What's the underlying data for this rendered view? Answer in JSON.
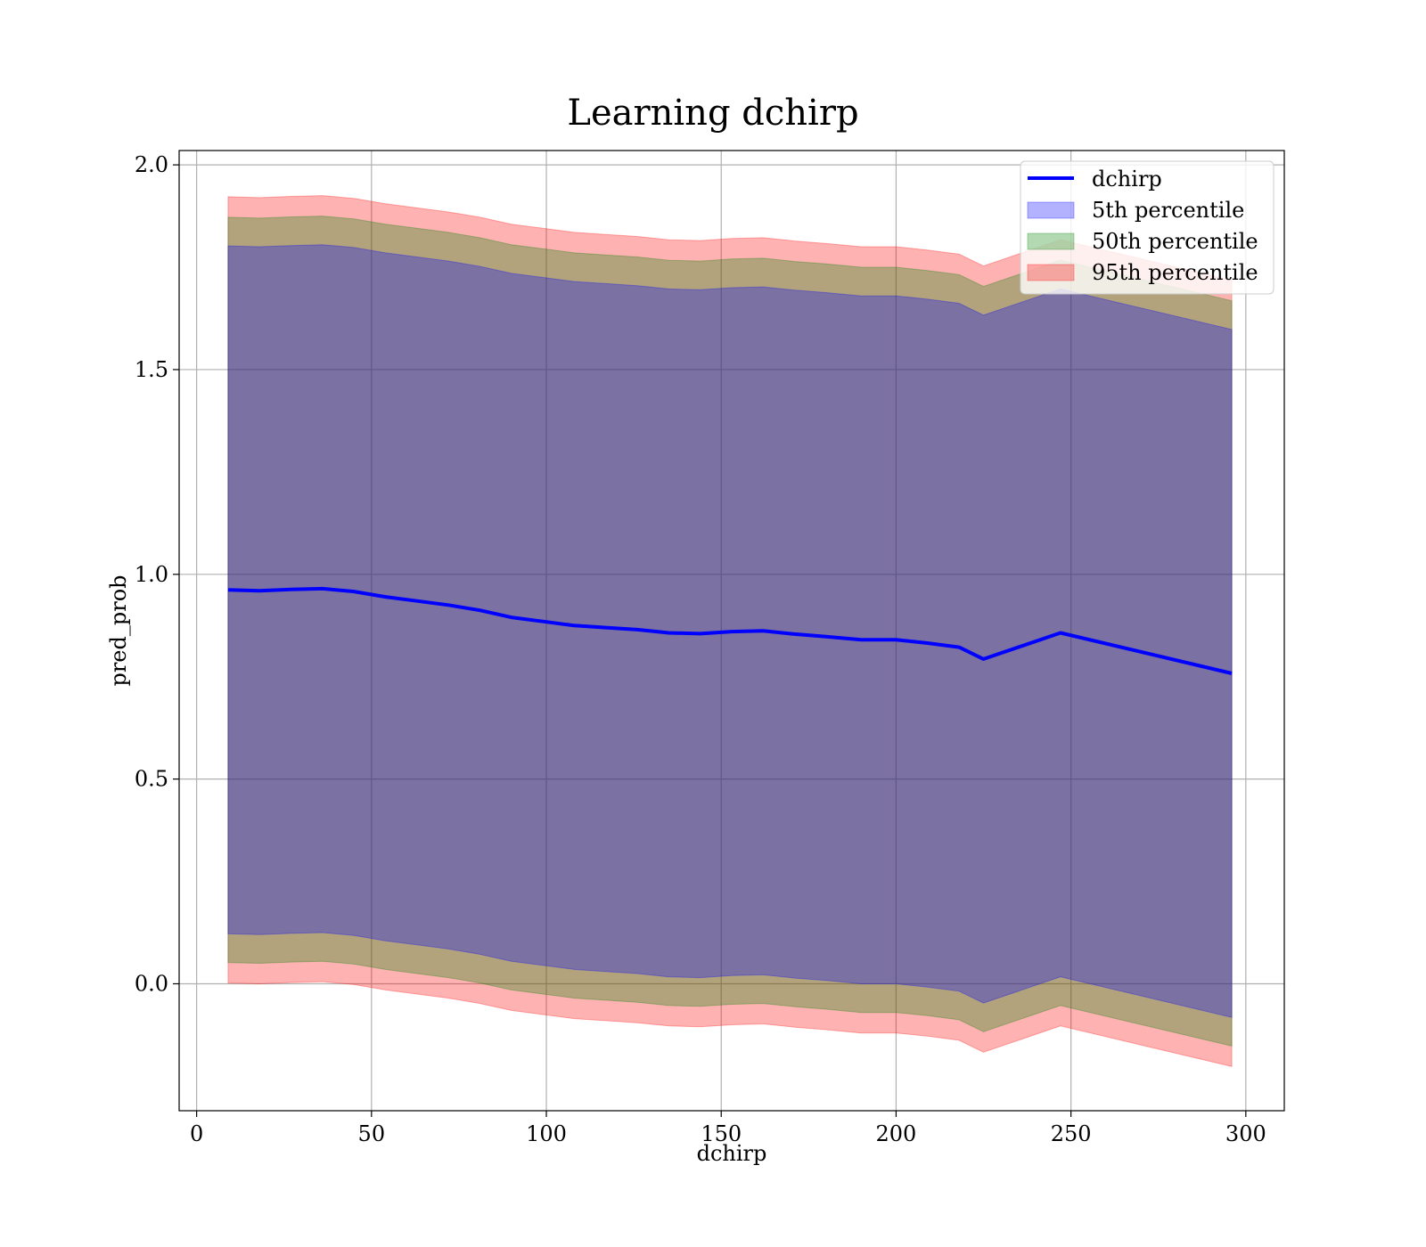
{
  "chart_data": {
    "type": "line",
    "title": "Learning dchirp",
    "xlabel": "dchirp",
    "ylabel": "pred_prob",
    "xlim": [
      -5,
      311
    ],
    "ylim": [
      -0.31,
      2.035
    ],
    "xticks": [
      0,
      50,
      100,
      150,
      200,
      250,
      300
    ],
    "yticks": [
      0.0,
      0.5,
      1.0,
      1.5,
      2.0
    ],
    "xtick_labels": [
      "0",
      "50",
      "100",
      "150",
      "200",
      "250",
      "300"
    ],
    "ytick_labels": [
      "0.0",
      "0.5",
      "1.0",
      "1.5",
      "2.0"
    ],
    "grid": true,
    "legend_position": "top-right",
    "legend": {
      "line_label": "dchirp",
      "band_labels": [
        "5th percentile",
        "50th percentile",
        "95th percentile"
      ]
    },
    "colors": {
      "line": "#0000ff",
      "p5": "#0000ff",
      "p50": "#008000",
      "p95": "#ff0000"
    },
    "x": [
      9,
      18,
      27,
      36,
      45,
      54,
      63,
      72,
      81,
      90,
      99,
      108,
      117,
      126,
      135,
      144,
      153,
      162,
      171,
      180,
      190,
      200,
      209,
      218,
      225,
      247,
      296
    ],
    "series": [
      {
        "name": "dchirp",
        "kind": "line",
        "values": [
          0.962,
          0.96,
          0.963,
          0.965,
          0.958,
          0.945,
          0.935,
          0.925,
          0.912,
          0.895,
          0.885,
          0.875,
          0.87,
          0.865,
          0.857,
          0.855,
          0.86,
          0.862,
          0.854,
          0.848,
          0.84,
          0.84,
          0.832,
          0.822,
          0.793,
          0.857,
          0.758
        ]
      },
      {
        "name": "5th percentile",
        "kind": "band",
        "lower": [
          0.122,
          0.12,
          0.123,
          0.125,
          0.118,
          0.105,
          0.095,
          0.085,
          0.072,
          0.055,
          0.045,
          0.035,
          0.03,
          0.025,
          0.017,
          0.015,
          0.02,
          0.022,
          0.014,
          0.008,
          0.0,
          0.0,
          -0.008,
          -0.018,
          -0.047,
          0.017,
          -0.082
        ],
        "upper": [
          1.802,
          1.8,
          1.803,
          1.805,
          1.798,
          1.785,
          1.775,
          1.765,
          1.752,
          1.735,
          1.725,
          1.715,
          1.71,
          1.705,
          1.697,
          1.695,
          1.7,
          1.702,
          1.694,
          1.688,
          1.68,
          1.68,
          1.672,
          1.662,
          1.633,
          1.697,
          1.598
        ]
      },
      {
        "name": "50th percentile",
        "kind": "band",
        "lower": [
          0.052,
          0.05,
          0.053,
          0.055,
          0.048,
          0.035,
          0.025,
          0.015,
          0.002,
          -0.015,
          -0.025,
          -0.035,
          -0.04,
          -0.045,
          -0.053,
          -0.055,
          -0.05,
          -0.048,
          -0.056,
          -0.062,
          -0.07,
          -0.07,
          -0.078,
          -0.088,
          -0.117,
          -0.053,
          -0.152
        ],
        "upper": [
          1.872,
          1.87,
          1.873,
          1.875,
          1.868,
          1.855,
          1.845,
          1.835,
          1.822,
          1.805,
          1.795,
          1.785,
          1.78,
          1.775,
          1.767,
          1.765,
          1.77,
          1.772,
          1.764,
          1.758,
          1.75,
          1.75,
          1.742,
          1.732,
          1.703,
          1.767,
          1.668
        ]
      },
      {
        "name": "95th percentile",
        "kind": "band",
        "lower": [
          0.002,
          0.0,
          0.003,
          0.005,
          -0.002,
          -0.015,
          -0.025,
          -0.035,
          -0.048,
          -0.065,
          -0.075,
          -0.085,
          -0.09,
          -0.095,
          -0.103,
          -0.105,
          -0.1,
          -0.098,
          -0.106,
          -0.112,
          -0.12,
          -0.12,
          -0.128,
          -0.138,
          -0.167,
          -0.103,
          -0.202
        ],
        "upper": [
          1.922,
          1.92,
          1.923,
          1.925,
          1.918,
          1.905,
          1.895,
          1.885,
          1.872,
          1.855,
          1.845,
          1.835,
          1.83,
          1.825,
          1.817,
          1.815,
          1.82,
          1.822,
          1.814,
          1.808,
          1.8,
          1.8,
          1.792,
          1.782,
          1.753,
          1.817,
          1.718
        ]
      }
    ]
  }
}
